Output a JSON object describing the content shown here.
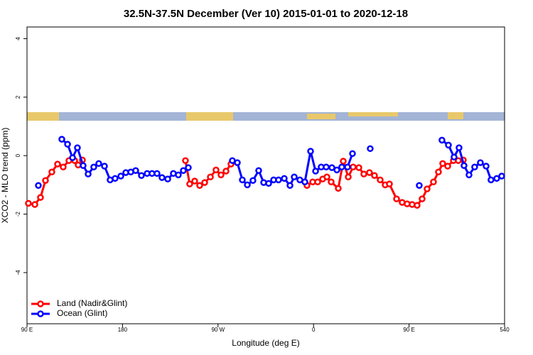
{
  "chart_data": {
    "type": "line",
    "title": "32.5N-37.5N December (Ver 10)   2015-01-01 to 2020-12-18",
    "xlabel": "Longitude (deg E)",
    "ylabel": "XCO2 - MLO trend (ppm)",
    "xlim": [
      90,
      540
    ],
    "xticks": [
      {
        "value": 90,
        "label": "90 E"
      },
      180,
      {
        "value": 270,
        "label": "90 W"
      },
      {
        "value": 360,
        "label": "0"
      },
      {
        "value": 450,
        "label": "90 E"
      },
      540
    ],
    "ylim": [
      4.4,
      -5.75
    ],
    "yticks": [
      4,
      2,
      0,
      -2,
      -4
    ],
    "legend": "bottom left",
    "series": [
      {
        "name": "Land (Nadir&Glint)",
        "color": "#ff0000",
        "x": [
          91.3,
          97.4,
          102.7,
          107.4,
          113.4,
          118.8,
          124.1,
          129.5,
          134.9,
          138.2,
          142.2,
          null,
          239.3,
          243.3,
          248.0,
          252.7,
          257.4,
          262.8,
          268.1,
          272.8,
          277.5,
          282.2,
          null,
          353.8,
          359.2,
          363.9,
          368.6,
          372.6,
          376.6,
          383.3,
          388.0,
          392.7,
          397.3,
          402.7,
          407.4,
          412.7,
          417.4,
          422.8,
          427.5,
          431.5,
          438.2,
          443.5,
          448.2,
          452.9,
          457.6,
          462.3,
          467.0,
          473.0,
          477.7,
          481.7,
          486.4,
          491.8,
          496.4,
          501.1
        ],
        "values": [
          -1.63,
          -1.67,
          -1.43,
          -0.85,
          -0.56,
          -0.29,
          -0.39,
          -0.17,
          -0.17,
          -0.32,
          -0.15,
          null,
          -0.17,
          -0.97,
          -0.87,
          -1.02,
          -0.92,
          -0.73,
          -0.49,
          -0.66,
          -0.53,
          -0.29,
          null,
          -1.02,
          -0.9,
          -0.9,
          -0.8,
          -0.73,
          -0.9,
          -1.12,
          -0.19,
          -0.73,
          -0.39,
          -0.41,
          -0.63,
          -0.58,
          -0.68,
          -0.83,
          -1.0,
          -0.97,
          -1.48,
          -1.6,
          -1.65,
          -1.67,
          -1.7,
          -1.48,
          -1.14,
          -0.9,
          -0.56,
          -0.27,
          -0.36,
          -0.17,
          -0.17,
          -0.15
        ]
      },
      {
        "name": "Ocean (Glint)",
        "color": "#0000ff",
        "x": [
          100.7,
          null,
          122.8,
          128.2,
          132.9,
          137.5,
          142.9,
          147.6,
          152.9,
          157.6,
          163.0,
          168.3,
          173.0,
          178.4,
          183.1,
          187.8,
          192.4,
          197.8,
          203.2,
          207.8,
          212.5,
          217.2,
          222.6,
          227.9,
          232.6,
          237.3,
          242.0,
          null,
          283.5,
          288.2,
          292.9,
          297.6,
          302.9,
          308.3,
          313.0,
          317.7,
          322.4,
          327.0,
          332.4,
          337.8,
          341.8,
          347.1,
          351.8,
          357.2,
          361.9,
          367.2,
          371.9,
          377.3,
          382.0,
          386.6,
          392.0,
          396.7,
          null,
          413.4,
          null,
          459.6,
          null,
          481.0,
          487.1,
          492.4,
          497.1,
          501.8,
          506.5,
          511.8,
          517.2,
          522.6,
          527.2,
          532.6,
          537.3
        ],
        "values": [
          -1.02,
          null,
          0.56,
          0.39,
          -0.07,
          0.27,
          -0.34,
          -0.63,
          -0.39,
          -0.27,
          -0.36,
          -0.83,
          -0.78,
          -0.7,
          -0.58,
          -0.56,
          -0.51,
          -0.68,
          -0.61,
          -0.61,
          -0.61,
          -0.75,
          -0.8,
          -0.61,
          -0.66,
          -0.51,
          -0.41,
          null,
          -0.17,
          -0.24,
          -0.83,
          -1.0,
          -0.85,
          -0.51,
          -0.92,
          -0.95,
          -0.83,
          -0.83,
          -0.78,
          -1.02,
          -0.73,
          -0.83,
          -0.9,
          0.15,
          -0.53,
          -0.39,
          -0.39,
          -0.41,
          -0.49,
          -0.39,
          -0.39,
          0.07,
          null,
          0.24,
          null,
          -1.02,
          null,
          0.53,
          0.36,
          -0.05,
          0.27,
          -0.34,
          -0.66,
          -0.39,
          -0.24,
          -0.36,
          -0.83,
          -0.78,
          -0.7
        ]
      }
    ]
  }
}
